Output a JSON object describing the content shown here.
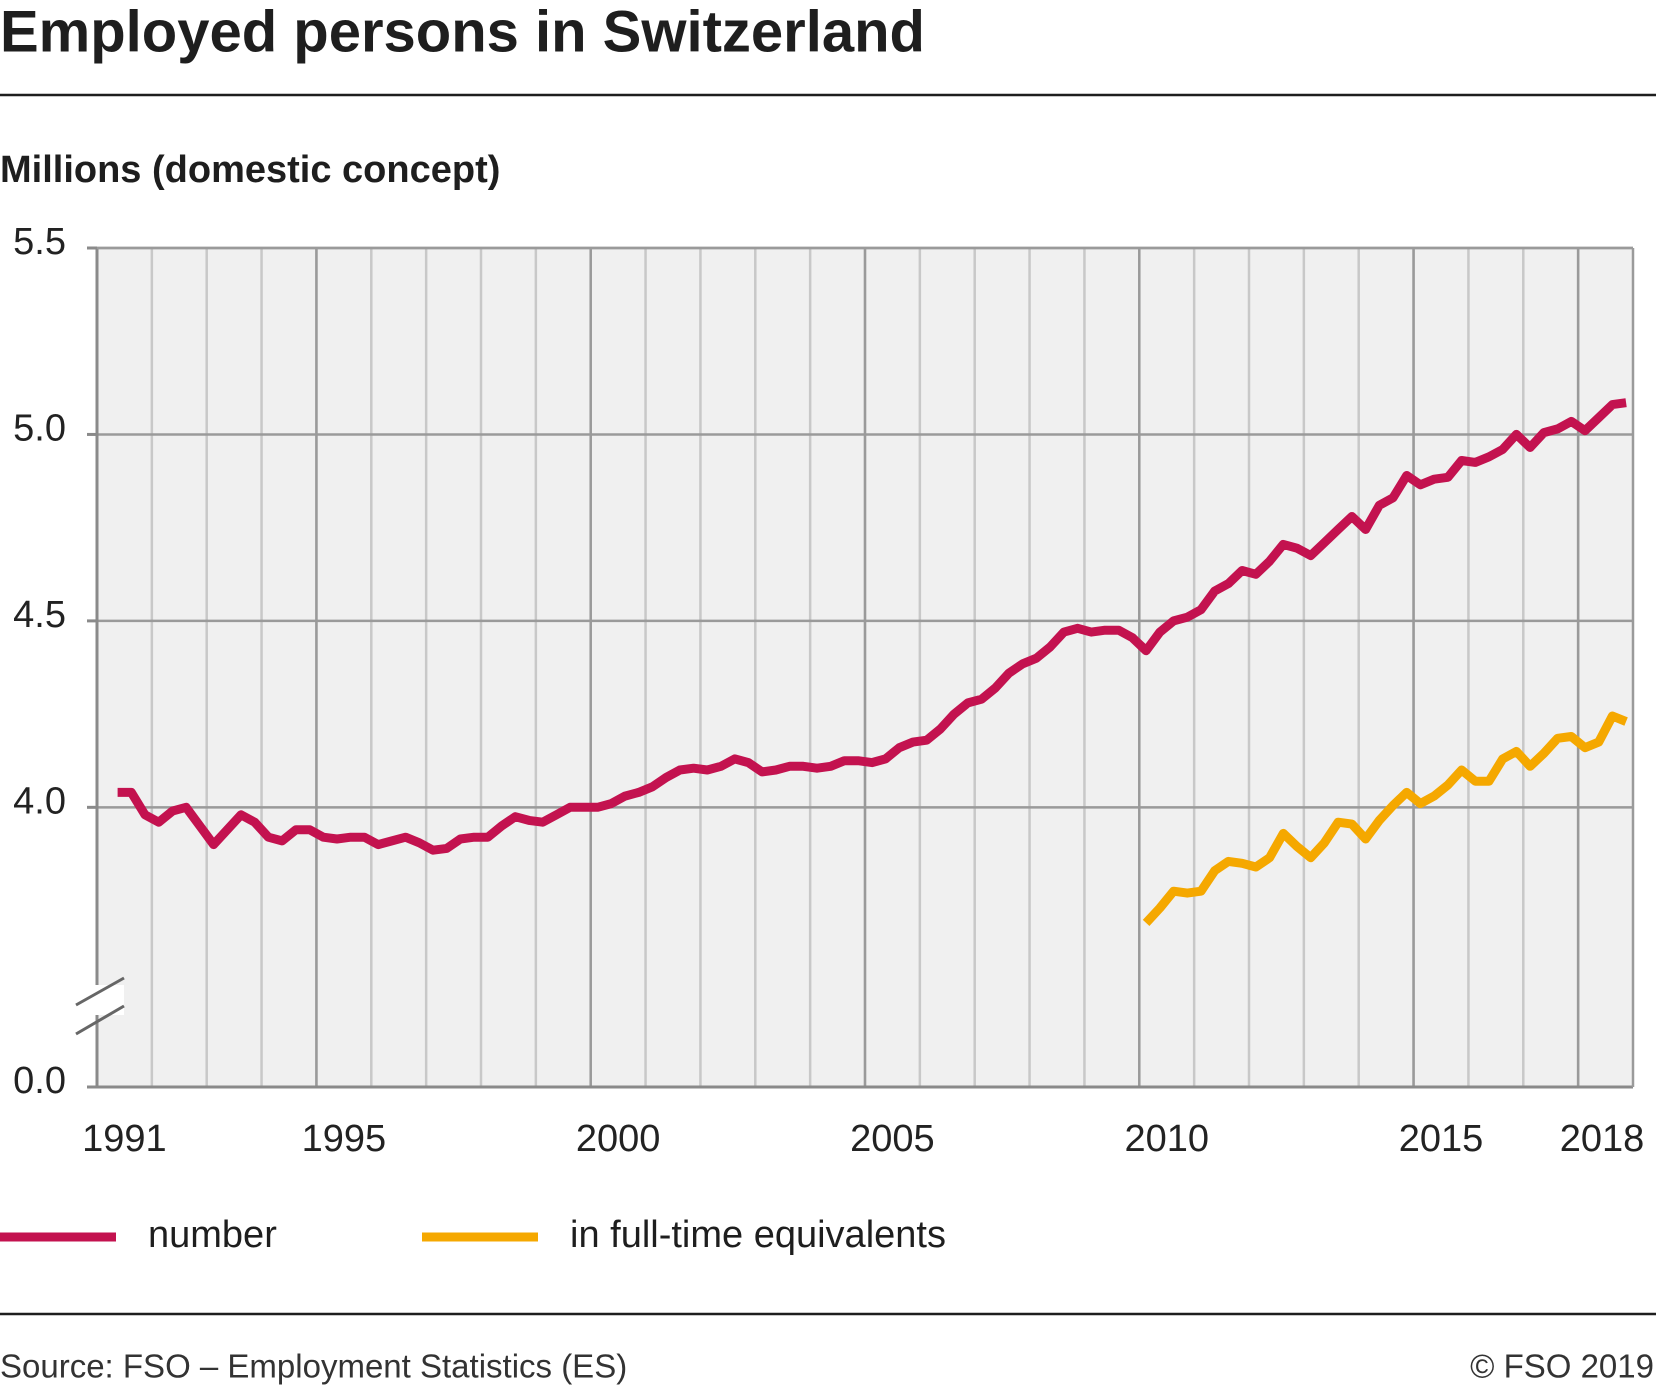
{
  "chart_data": {
    "type": "line",
    "title": "Employed persons in Switzerland",
    "subtitle": "Millions (domestic concept)",
    "source": "Source: FSO – Employment Statistics (ES)",
    "copyright": "© FSO 2019",
    "xlim": [
      1991,
      2019
    ],
    "xticks": [
      1991,
      1995,
      2000,
      2005,
      2010,
      2015,
      2018
    ],
    "ylim": [
      0,
      5.5
    ],
    "yticks": [
      {
        "value": 0,
        "label": "0.0"
      },
      {
        "value": 4,
        "label": "4.0"
      },
      4.5,
      {
        "value": 5,
        "label": "5.0"
      },
      5.5
    ],
    "axis_break": true,
    "grid": true,
    "x": [
      1991.375,
      1991.625,
      1991.875,
      1992.125,
      1992.375,
      1992.625,
      1992.875,
      1993.125,
      1993.375,
      1993.625,
      1993.875,
      1994.125,
      1994.375,
      1994.625,
      1994.875,
      1995.125,
      1995.375,
      1995.625,
      1995.875,
      1996.125,
      1996.375,
      1996.625,
      1996.875,
      1997.125,
      1997.375,
      1997.625,
      1997.875,
      1998.125,
      1998.375,
      1998.625,
      1998.875,
      1999.125,
      1999.375,
      1999.625,
      1999.875,
      2000.125,
      2000.375,
      2000.625,
      2000.875,
      2001.125,
      2001.375,
      2001.625,
      2001.875,
      2002.125,
      2002.375,
      2002.625,
      2002.875,
      2003.125,
      2003.375,
      2003.625,
      2003.875,
      2004.125,
      2004.375,
      2004.625,
      2004.875,
      2005.125,
      2005.375,
      2005.625,
      2005.875,
      2006.125,
      2006.375,
      2006.625,
      2006.875,
      2007.125,
      2007.375,
      2007.625,
      2007.875,
      2008.125,
      2008.375,
      2008.625,
      2008.875,
      2009.125,
      2009.375,
      2009.625,
      2009.875,
      2010.125,
      2010.375,
      2010.625,
      2010.875,
      2011.125,
      2011.375,
      2011.625,
      2011.875,
      2012.125,
      2012.375,
      2012.625,
      2012.875,
      2013.125,
      2013.375,
      2013.625,
      2013.875,
      2014.125,
      2014.375,
      2014.625,
      2014.875,
      2015.125,
      2015.375,
      2015.625,
      2015.875,
      2016.125,
      2016.375,
      2016.625,
      2016.875,
      2017.125,
      2017.375,
      2017.625,
      2017.875,
      2018.125,
      2018.375,
      2018.625,
      2018.875
    ],
    "series": [
      {
        "name": "number",
        "color": "#c3124f",
        "values": [
          4.04,
          4.04,
          3.98,
          3.96,
          3.99,
          4.0,
          3.95,
          3.9,
          3.94,
          3.98,
          3.96,
          3.92,
          3.91,
          3.94,
          3.94,
          3.92,
          3.915,
          3.92,
          3.92,
          3.9,
          3.91,
          3.92,
          3.905,
          3.885,
          3.89,
          3.915,
          3.92,
          3.92,
          3.95,
          3.975,
          3.965,
          3.96,
          3.98,
          4.0,
          4.0,
          4.0,
          4.01,
          4.03,
          4.04,
          4.055,
          4.08,
          4.1,
          4.105,
          4.1,
          4.11,
          4.13,
          4.12,
          4.095,
          4.1,
          4.11,
          4.11,
          4.105,
          4.11,
          4.125,
          4.125,
          4.12,
          4.13,
          4.16,
          4.175,
          4.18,
          4.21,
          4.25,
          4.28,
          4.29,
          4.32,
          4.36,
          4.385,
          4.4,
          4.43,
          4.47,
          4.48,
          4.47,
          4.475,
          4.475,
          4.455,
          4.42,
          4.47,
          4.5,
          4.51,
          4.53,
          4.58,
          4.6,
          4.635,
          4.625,
          4.66,
          4.705,
          4.695,
          4.675,
          4.71,
          4.745,
          4.78,
          4.745,
          4.81,
          4.83,
          4.89,
          4.865,
          4.88,
          4.885,
          4.93,
          4.925,
          4.94,
          4.96,
          5.0,
          4.965,
          5.005,
          5.015,
          5.035,
          5.01,
          5.045,
          5.08,
          5.085
        ]
      },
      {
        "name": "in full-time equivalents",
        "color": "#f5a800",
        "values": [
          null,
          null,
          null,
          null,
          null,
          null,
          null,
          null,
          null,
          null,
          null,
          null,
          null,
          null,
          null,
          null,
          null,
          null,
          null,
          null,
          null,
          null,
          null,
          null,
          null,
          null,
          null,
          null,
          null,
          null,
          null,
          null,
          null,
          null,
          null,
          null,
          null,
          null,
          null,
          null,
          null,
          null,
          null,
          null,
          null,
          null,
          null,
          null,
          null,
          null,
          null,
          null,
          null,
          null,
          null,
          null,
          null,
          null,
          null,
          null,
          null,
          null,
          null,
          null,
          null,
          null,
          null,
          null,
          null,
          null,
          null,
          null,
          null,
          null,
          null,
          3.69,
          3.73,
          3.775,
          3.77,
          3.775,
          3.83,
          3.855,
          3.85,
          3.84,
          3.865,
          3.93,
          3.895,
          3.865,
          3.905,
          3.96,
          3.955,
          3.915,
          3.965,
          4.005,
          4.04,
          4.01,
          4.03,
          4.06,
          4.1,
          4.07,
          4.07,
          4.13,
          4.15,
          4.11,
          4.145,
          4.185,
          4.19,
          4.16,
          4.175,
          4.245,
          4.23
        ]
      }
    ]
  }
}
